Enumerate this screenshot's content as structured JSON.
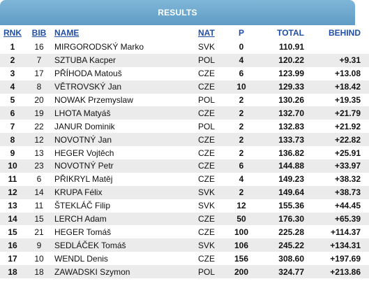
{
  "title": "RESULTS",
  "columns": {
    "rnk": "RNK",
    "bib": "BIB",
    "name": "NAME",
    "nat": "NAT",
    "p": "P",
    "total": "TOTAL",
    "behind": "BEHIND"
  },
  "rows": [
    {
      "rnk": "1",
      "bib": "16",
      "name": "MIRGORODSKÝ Marko",
      "nat": "SVK",
      "p": "0",
      "total": "110.91",
      "behind": ""
    },
    {
      "rnk": "2",
      "bib": "7",
      "name": "SZTUBA Kacper",
      "nat": "POL",
      "p": "4",
      "total": "120.22",
      "behind": "+9.31"
    },
    {
      "rnk": "3",
      "bib": "17",
      "name": "PŘÍHODA Matouš",
      "nat": "CZE",
      "p": "6",
      "total": "123.99",
      "behind": "+13.08"
    },
    {
      "rnk": "4",
      "bib": "8",
      "name": "VĚTROVSKÝ Jan",
      "nat": "CZE",
      "p": "10",
      "total": "129.33",
      "behind": "+18.42"
    },
    {
      "rnk": "5",
      "bib": "20",
      "name": "NOWAK Przemyslaw",
      "nat": "POL",
      "p": "2",
      "total": "130.26",
      "behind": "+19.35"
    },
    {
      "rnk": "6",
      "bib": "19",
      "name": "LHOTA Matyáš",
      "nat": "CZE",
      "p": "2",
      "total": "132.70",
      "behind": "+21.79"
    },
    {
      "rnk": "7",
      "bib": "22",
      "name": "JANUR Dominik",
      "nat": "POL",
      "p": "2",
      "total": "132.83",
      "behind": "+21.92"
    },
    {
      "rnk": "8",
      "bib": "12",
      "name": "NOVOTNÝ Jan",
      "nat": "CZE",
      "p": "2",
      "total": "133.73",
      "behind": "+22.82"
    },
    {
      "rnk": "9",
      "bib": "13",
      "name": "HEGER Vojtěch",
      "nat": "CZE",
      "p": "2",
      "total": "136.82",
      "behind": "+25.91"
    },
    {
      "rnk": "10",
      "bib": "23",
      "name": "NOVOTNÝ Petr",
      "nat": "CZE",
      "p": "6",
      "total": "144.88",
      "behind": "+33.97"
    },
    {
      "rnk": "11",
      "bib": "6",
      "name": "PŘIKRYL Matěj",
      "nat": "CZE",
      "p": "4",
      "total": "149.23",
      "behind": "+38.32"
    },
    {
      "rnk": "12",
      "bib": "14",
      "name": "KRUPA Félix",
      "nat": "SVK",
      "p": "2",
      "total": "149.64",
      "behind": "+38.73"
    },
    {
      "rnk": "13",
      "bib": "11",
      "name": "ŠTEKLÁČ Filip",
      "nat": "SVK",
      "p": "12",
      "total": "155.36",
      "behind": "+44.45"
    },
    {
      "rnk": "14",
      "bib": "15",
      "name": "LERCH Adam",
      "nat": "CZE",
      "p": "50",
      "total": "176.30",
      "behind": "+65.39"
    },
    {
      "rnk": "15",
      "bib": "21",
      "name": "HEGER Tomáš",
      "nat": "CZE",
      "p": "100",
      "total": "225.28",
      "behind": "+114.37"
    },
    {
      "rnk": "16",
      "bib": "9",
      "name": "SEDLÁČEK Tomáš",
      "nat": "SVK",
      "p": "106",
      "total": "245.22",
      "behind": "+134.31"
    },
    {
      "rnk": "17",
      "bib": "10",
      "name": "WENDL Denis",
      "nat": "CZE",
      "p": "156",
      "total": "308.60",
      "behind": "+197.69"
    },
    {
      "rnk": "18",
      "bib": "18",
      "name": "ZAWADSKI Szymon",
      "nat": "POL",
      "p": "200",
      "total": "324.77",
      "behind": "+213.86"
    }
  ]
}
